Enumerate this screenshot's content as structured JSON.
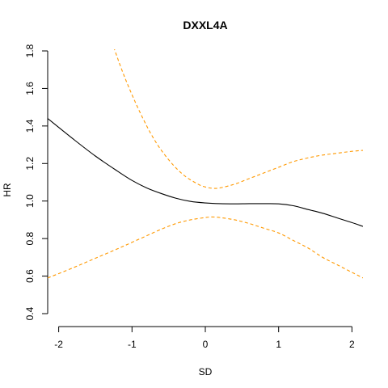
{
  "chart_data": {
    "type": "line",
    "title": "DXXL4A",
    "xlabel": "SD",
    "ylabel": "HR",
    "xlim": [
      -2.15,
      2.15
    ],
    "ylim": [
      0.4,
      1.8
    ],
    "xticks": [
      -2,
      -1,
      0,
      1,
      2
    ],
    "xtick_labels": [
      "-2",
      "-1",
      "0",
      "1",
      "2"
    ],
    "yticks": [
      0.4,
      0.6,
      0.8,
      1.0,
      1.2,
      1.4,
      1.6,
      1.8
    ],
    "ytick_labels": [
      "0.4",
      "0.6",
      "0.8",
      "1.0",
      "1.2",
      "1.4",
      "1.6",
      "1.8"
    ],
    "grid": false,
    "series": [
      {
        "role": "estimate",
        "color": "#000000",
        "dash": "solid",
        "x": [
          -2.15,
          -1.8,
          -1.5,
          -1.2,
          -1.0,
          -0.8,
          -0.6,
          -0.4,
          -0.2,
          0.0,
          0.2,
          0.4,
          0.6,
          0.8,
          1.0,
          1.2,
          1.4,
          1.6,
          1.8,
          2.0,
          2.15
        ],
        "y": [
          1.44,
          1.33,
          1.24,
          1.16,
          1.11,
          1.07,
          1.04,
          1.015,
          0.998,
          0.99,
          0.986,
          0.985,
          0.986,
          0.986,
          0.985,
          0.975,
          0.955,
          0.935,
          0.91,
          0.885,
          0.865
        ]
      },
      {
        "role": "upper-ci",
        "color": "#ff9900",
        "dash": "dashed",
        "x": [
          -1.25,
          -1.1,
          -0.9,
          -0.7,
          -0.5,
          -0.3,
          -0.1,
          0.0,
          0.1,
          0.2,
          0.4,
          0.6,
          0.8,
          1.0,
          1.2,
          1.4,
          1.6,
          1.8,
          2.0,
          2.15
        ],
        "y": [
          1.82,
          1.66,
          1.48,
          1.33,
          1.22,
          1.14,
          1.09,
          1.075,
          1.068,
          1.07,
          1.09,
          1.12,
          1.15,
          1.18,
          1.21,
          1.23,
          1.245,
          1.255,
          1.265,
          1.27
        ]
      },
      {
        "role": "lower-ci",
        "color": "#ff9900",
        "dash": "dashed",
        "x": [
          -2.15,
          -1.8,
          -1.5,
          -1.2,
          -1.0,
          -0.8,
          -0.6,
          -0.4,
          -0.2,
          0.0,
          0.1,
          0.2,
          0.4,
          0.6,
          0.8,
          1.0,
          1.2,
          1.4,
          1.6,
          1.8,
          2.0,
          2.15
        ],
        "y": [
          0.59,
          0.645,
          0.695,
          0.745,
          0.78,
          0.815,
          0.85,
          0.88,
          0.9,
          0.912,
          0.915,
          0.912,
          0.9,
          0.88,
          0.855,
          0.83,
          0.79,
          0.75,
          0.7,
          0.66,
          0.62,
          0.59
        ]
      }
    ]
  }
}
